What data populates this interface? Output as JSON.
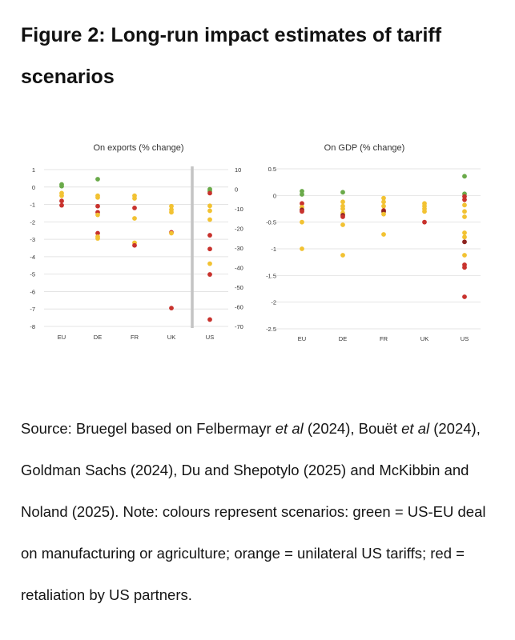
{
  "figure": {
    "title": "Figure 2: Long-run impact estimates of tariff scenarios"
  },
  "source_note": {
    "p1": "Source: Bruegel based on Felbermayr ",
    "i1": "et al",
    "p2": " (2024), Bouët ",
    "i2": "et al",
    "p3": " (2024), Goldman Sachs (2024), Du and Shepotylo (2025) and McKibbin and Noland (2025). Note: colours represent scenarios: green = US-EU deal on manufacturing or agriculture; orange = unilateral US tariffs; red = retaliation by US partners."
  },
  "colors": {
    "green": "#6aaa4a",
    "orange": "#f2c232",
    "red": "#c8322d",
    "darkred": "#8e2420"
  },
  "chart_data": [
    {
      "type": "scatter",
      "title": "On exports (% change)",
      "categories": [
        "EU",
        "DE",
        "FR",
        "UK",
        "US"
      ],
      "ylim": [
        -8,
        1
      ],
      "y_ticks": [
        1,
        0,
        -1,
        -2,
        -3,
        -4,
        -5,
        -6,
        -7,
        -8
      ],
      "secondary_axis": {
        "applies_to": "US",
        "ylim": [
          -70,
          10
        ],
        "ticks": [
          10,
          0,
          -10,
          -20,
          -30,
          -40,
          -50,
          -60,
          -70
        ]
      },
      "grid": true,
      "points": [
        {
          "cat": "EU",
          "y": 0.15,
          "s": "green"
        },
        {
          "cat": "EU",
          "y": 0.05,
          "s": "green"
        },
        {
          "cat": "EU",
          "y": -0.35,
          "s": "orange"
        },
        {
          "cat": "EU",
          "y": -0.5,
          "s": "orange"
        },
        {
          "cat": "EU",
          "y": -0.8,
          "s": "red"
        },
        {
          "cat": "EU",
          "y": -1.05,
          "s": "red"
        },
        {
          "cat": "DE",
          "y": 0.45,
          "s": "green"
        },
        {
          "cat": "DE",
          "y": -0.5,
          "s": "orange"
        },
        {
          "cat": "DE",
          "y": -0.6,
          "s": "orange"
        },
        {
          "cat": "DE",
          "y": -1.1,
          "s": "red"
        },
        {
          "cat": "DE",
          "y": -1.45,
          "s": "red"
        },
        {
          "cat": "DE",
          "y": -1.6,
          "s": "orange"
        },
        {
          "cat": "DE",
          "y": -2.65,
          "s": "red"
        },
        {
          "cat": "DE",
          "y": -2.85,
          "s": "orange"
        },
        {
          "cat": "DE",
          "y": -2.95,
          "s": "orange"
        },
        {
          "cat": "FR",
          "y": -0.5,
          "s": "orange"
        },
        {
          "cat": "FR",
          "y": -0.65,
          "s": "orange"
        },
        {
          "cat": "FR",
          "y": -1.2,
          "s": "red"
        },
        {
          "cat": "FR",
          "y": -1.8,
          "s": "orange"
        },
        {
          "cat": "FR",
          "y": -3.2,
          "s": "orange"
        },
        {
          "cat": "FR",
          "y": -3.35,
          "s": "red"
        },
        {
          "cat": "UK",
          "y": -1.1,
          "s": "orange"
        },
        {
          "cat": "UK",
          "y": -1.3,
          "s": "orange"
        },
        {
          "cat": "UK",
          "y": -1.45,
          "s": "orange"
        },
        {
          "cat": "UK",
          "y": -2.6,
          "s": "red"
        },
        {
          "cat": "UK",
          "y": -2.65,
          "s": "orange"
        },
        {
          "cat": "UK",
          "y": -6.95,
          "s": "red"
        },
        {
          "cat": "US",
          "y": 0,
          "s": "green",
          "axis": "right"
        },
        {
          "cat": "US",
          "y": -1,
          "s": "green",
          "axis": "right"
        },
        {
          "cat": "US",
          "y": -2,
          "s": "red",
          "axis": "right"
        },
        {
          "cat": "US",
          "y": -8.5,
          "s": "orange",
          "axis": "right"
        },
        {
          "cat": "US",
          "y": -11,
          "s": "orange",
          "axis": "right"
        },
        {
          "cat": "US",
          "y": -15.5,
          "s": "orange",
          "axis": "right"
        },
        {
          "cat": "US",
          "y": -23.5,
          "s": "red",
          "axis": "right"
        },
        {
          "cat": "US",
          "y": -30.5,
          "s": "red",
          "axis": "right"
        },
        {
          "cat": "US",
          "y": -38,
          "s": "orange",
          "axis": "right"
        },
        {
          "cat": "US",
          "y": -43.5,
          "s": "red",
          "axis": "right"
        },
        {
          "cat": "US",
          "y": -66.5,
          "s": "red",
          "axis": "right"
        }
      ]
    },
    {
      "type": "scatter",
      "title": "On GDP (% change)",
      "categories": [
        "EU",
        "DE",
        "FR",
        "UK",
        "US"
      ],
      "ylim": [
        -2.5,
        0.5
      ],
      "y_ticks": [
        "0.5",
        "0",
        "-0.5",
        "-1",
        "-1.5",
        "-2",
        "-2.5"
      ],
      "grid": true,
      "points": [
        {
          "cat": "EU",
          "y": 0.08,
          "s": "green"
        },
        {
          "cat": "EU",
          "y": 0.02,
          "s": "green"
        },
        {
          "cat": "EU",
          "y": -0.15,
          "s": "red"
        },
        {
          "cat": "EU",
          "y": -0.22,
          "s": "orange"
        },
        {
          "cat": "EU",
          "y": -0.27,
          "s": "darkred"
        },
        {
          "cat": "EU",
          "y": -0.3,
          "s": "red"
        },
        {
          "cat": "EU",
          "y": -0.5,
          "s": "orange"
        },
        {
          "cat": "EU",
          "y": -1.0,
          "s": "orange"
        },
        {
          "cat": "DE",
          "y": 0.06,
          "s": "green"
        },
        {
          "cat": "DE",
          "y": -0.12,
          "s": "orange"
        },
        {
          "cat": "DE",
          "y": -0.2,
          "s": "orange"
        },
        {
          "cat": "DE",
          "y": -0.25,
          "s": "orange"
        },
        {
          "cat": "DE",
          "y": -0.33,
          "s": "orange"
        },
        {
          "cat": "DE",
          "y": -0.37,
          "s": "darkred"
        },
        {
          "cat": "DE",
          "y": -0.4,
          "s": "red"
        },
        {
          "cat": "DE",
          "y": -0.55,
          "s": "orange"
        },
        {
          "cat": "DE",
          "y": -1.12,
          "s": "orange"
        },
        {
          "cat": "FR",
          "y": -0.05,
          "s": "orange"
        },
        {
          "cat": "FR",
          "y": -0.12,
          "s": "orange"
        },
        {
          "cat": "FR",
          "y": -0.2,
          "s": "orange"
        },
        {
          "cat": "FR",
          "y": -0.28,
          "s": "red"
        },
        {
          "cat": "FR",
          "y": -0.3,
          "s": "darkred"
        },
        {
          "cat": "FR",
          "y": -0.35,
          "s": "orange"
        },
        {
          "cat": "FR",
          "y": -0.73,
          "s": "orange"
        },
        {
          "cat": "UK",
          "y": -0.15,
          "s": "orange"
        },
        {
          "cat": "UK",
          "y": -0.2,
          "s": "orange"
        },
        {
          "cat": "UK",
          "y": -0.25,
          "s": "orange"
        },
        {
          "cat": "UK",
          "y": -0.3,
          "s": "orange"
        },
        {
          "cat": "UK",
          "y": -0.5,
          "s": "red"
        },
        {
          "cat": "US",
          "y": 0.36,
          "s": "green"
        },
        {
          "cat": "US",
          "y": 0.03,
          "s": "green"
        },
        {
          "cat": "US",
          "y": -0.02,
          "s": "red"
        },
        {
          "cat": "US",
          "y": -0.08,
          "s": "red"
        },
        {
          "cat": "US",
          "y": -0.18,
          "s": "orange"
        },
        {
          "cat": "US",
          "y": -0.3,
          "s": "orange"
        },
        {
          "cat": "US",
          "y": -0.4,
          "s": "orange"
        },
        {
          "cat": "US",
          "y": -0.7,
          "s": "orange"
        },
        {
          "cat": "US",
          "y": -0.78,
          "s": "orange"
        },
        {
          "cat": "US",
          "y": -0.87,
          "s": "darkred"
        },
        {
          "cat": "US",
          "y": -1.12,
          "s": "orange"
        },
        {
          "cat": "US",
          "y": -1.3,
          "s": "red"
        },
        {
          "cat": "US",
          "y": -1.35,
          "s": "red"
        },
        {
          "cat": "US",
          "y": -1.9,
          "s": "red"
        }
      ]
    }
  ]
}
